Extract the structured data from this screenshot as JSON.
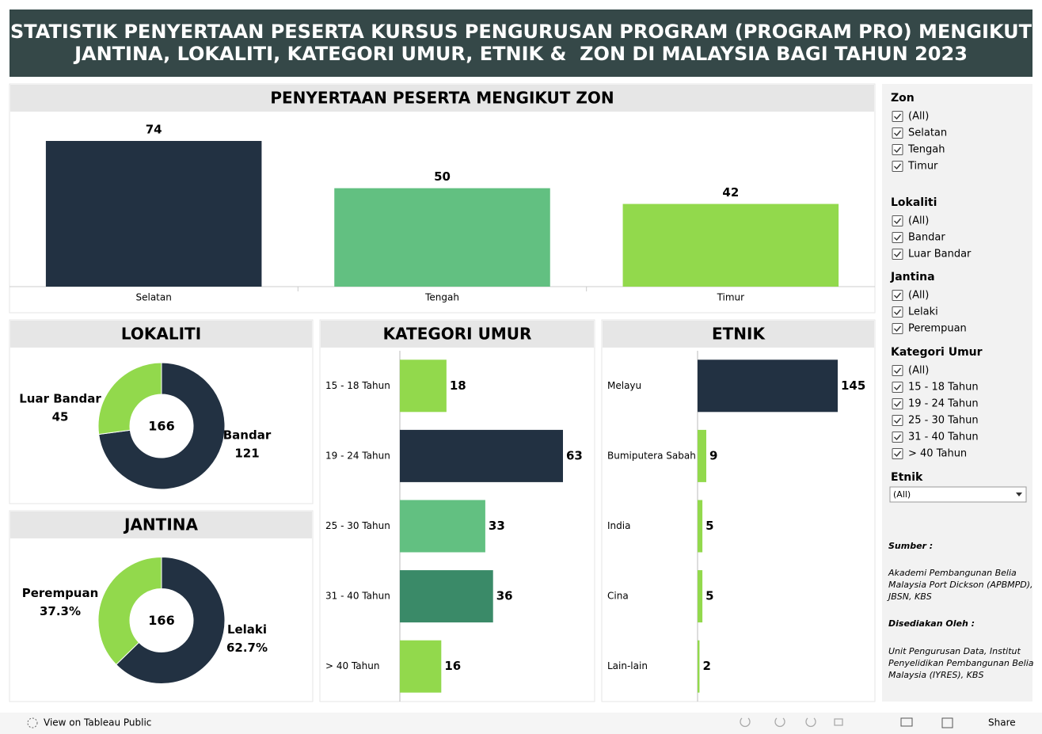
{
  "header": {
    "title": [
      "STATISTIK PENYERTAAN PESERTA KURSUS PENGURUSAN PROGRAM (PROGRAM PRO) MENGIKUT",
      "JANTINA, LOKALITI, KATEGORI UMUR, ETNIK &  ZON DI MALAYSIA BAGI TAHUN 2023"
    ]
  },
  "chart_data": [
    {
      "type": "bar",
      "title": "PENYERTAAN PESERTA MENGIKUT ZON",
      "categories": [
        "Selatan",
        "Tengah",
        "Timur"
      ],
      "values": [
        74,
        50,
        42
      ],
      "colors": [
        "#223142",
        "#62c081",
        "#92d94c"
      ]
    },
    {
      "type": "donut",
      "title": "LOKALITI",
      "categories": [
        "Luar Bandar",
        "Bandar"
      ],
      "values": [
        45,
        121
      ],
      "colors": [
        "#92d94c",
        "#223142"
      ],
      "total": 166
    },
    {
      "type": "donut",
      "title": "JANTINA",
      "categories": [
        "Perempuan",
        "Lelaki"
      ],
      "values": [
        37.3,
        62.7
      ],
      "value_labels": [
        "37.3%",
        "62.7%"
      ],
      "colors": [
        "#92d94c",
        "#223142"
      ],
      "total": 166
    },
    {
      "type": "hbar",
      "title": "KATEGORI UMUR",
      "categories": [
        "15 - 18 Tahun",
        "19 - 24 Tahun",
        "25 - 30 Tahun",
        "31 - 40 Tahun",
        "> 40 Tahun"
      ],
      "values": [
        18,
        63,
        33,
        36,
        16
      ],
      "colors": [
        "#92d94c",
        "#223142",
        "#62c081",
        "#3a8a68",
        "#92d94c"
      ]
    },
    {
      "type": "hbar",
      "title": "ETNIK",
      "categories": [
        "Melayu",
        "Bumiputera Sabah",
        "India",
        "Cina",
        "Lain-lain"
      ],
      "values": [
        145,
        9,
        5,
        5,
        2
      ],
      "colors": [
        "#223142",
        "#92d94c",
        "#92d94c",
        "#92d94c",
        "#92d94c"
      ]
    }
  ],
  "filters": [
    {
      "title": "Zon",
      "options": [
        "(All)",
        "Selatan",
        "Tengah",
        "Timur"
      ]
    },
    {
      "title": "Lokaliti",
      "options": [
        "(All)",
        "Bandar",
        "Luar Bandar"
      ]
    },
    {
      "title": "Jantina",
      "options": [
        "(All)",
        "Lelaki",
        "Perempuan"
      ]
    },
    {
      "title": "Kategori Umur",
      "options": [
        "(All)",
        "15 - 18 Tahun",
        "19 - 24 Tahun",
        "25 - 30 Tahun",
        "31 - 40 Tahun",
        "> 40 Tahun"
      ]
    },
    {
      "title": "Etnik",
      "dropdown": "(All)"
    }
  ],
  "source": {
    "label": "Sumber :",
    "lines": [
      "Akademi Pembangunan Belia",
      "Malaysia Port Dickson (APBMPD),",
      "JBSN, KBS"
    ],
    "prepared_label": "Disediakan Oleh :",
    "prepared_lines": [
      "Unit Pengurusan Data, Institut",
      "Penyelidikan Pembangunan Belia",
      "Malaysia (IYRES), KBS"
    ]
  },
  "footer": {
    "view": "View on Tableau Public",
    "share": "Share"
  }
}
